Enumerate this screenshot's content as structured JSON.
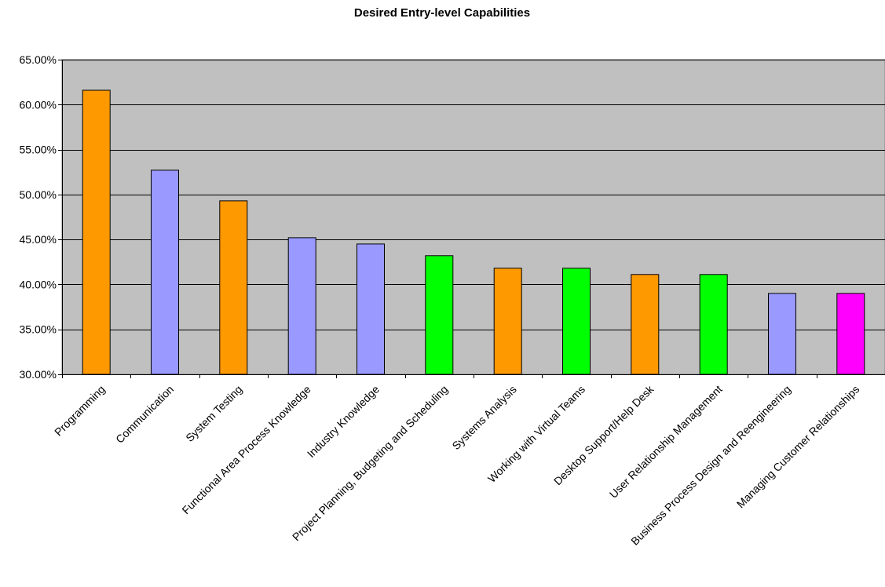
{
  "chart_data": {
    "type": "bar",
    "title": "Desired Entry-level Capabilities",
    "xlabel": "",
    "ylabel": "",
    "ylim": [
      0.3,
      0.65
    ],
    "y_ticks": [
      "30.00%",
      "35.00%",
      "40.00%",
      "45.00%",
      "50.00%",
      "55.00%",
      "60.00%",
      "65.00%"
    ],
    "y_tick_values": [
      0.3,
      0.35,
      0.4,
      0.45,
      0.5,
      0.55,
      0.6,
      0.65
    ],
    "grid": true,
    "legend": "none",
    "plot_background": "#C0C0C0",
    "categories": [
      "Programming",
      "Communication",
      "System Testing",
      "Functional Area Process Knowledge",
      "Industry Knowledge",
      "Project Planning, Budgeting and Scheduling",
      "Systems Analysis",
      "Working with Virtual Teams",
      "Desktop Support/Help Desk",
      "User Relationship Management",
      "Business Process Design and Reengineering",
      "Managing Customer Relationships"
    ],
    "values": [
      0.616,
      0.527,
      0.493,
      0.452,
      0.445,
      0.432,
      0.418,
      0.418,
      0.411,
      0.411,
      0.39,
      0.39
    ],
    "colors": [
      "#FF9900",
      "#9999FF",
      "#FF9900",
      "#9999FF",
      "#9999FF",
      "#00FF00",
      "#FF9900",
      "#00FF00",
      "#FF9900",
      "#00FF00",
      "#9999FF",
      "#FF00FF"
    ]
  }
}
